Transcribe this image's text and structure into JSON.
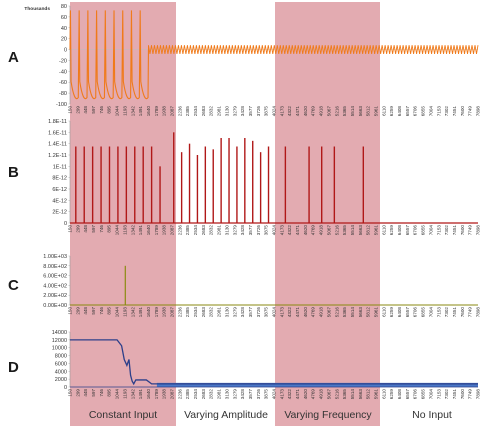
{
  "figure": {
    "panel_labels": [
      "A",
      "B",
      "C",
      "D"
    ],
    "regions": [
      "Constant Input",
      "Varying Amplitude",
      "Varying Frequency",
      "No Input"
    ],
    "colors": {
      "highlight": "#d98f97",
      "panel_a": "#f07a1a",
      "panel_b": "#b01818",
      "panel_c": "#8a8a10",
      "panel_d": "#2c3f8a",
      "panel_d_fill": "#4a78c8"
    },
    "x_tick_labels": [
      "150",
      "299",
      "448",
      "597",
      "746",
      "895",
      "1044",
      "1193",
      "1342",
      "1491",
      "1640",
      "1789",
      "1938",
      "2087",
      "2236",
      "2385",
      "2534",
      "2683",
      "2832",
      "2981",
      "3130",
      "3279",
      "3428",
      "3577",
      "3726",
      "3875",
      "4024",
      "4173",
      "4322",
      "4471",
      "4620",
      "4769",
      "4918",
      "5067",
      "5216",
      "5365",
      "5514",
      "5663",
      "5812",
      "5961",
      "6110",
      "6259",
      "6408",
      "6557",
      "6706",
      "6855",
      "7004",
      "7153",
      "7302",
      "7451",
      "7600",
      "7749",
      "7898"
    ]
  },
  "chart_data": [
    {
      "type": "line",
      "panel": "A",
      "title": "",
      "ylabel": "Thousands",
      "ylim": [
        -100,
        80
      ],
      "y_ticks": [
        "80",
        "60",
        "40",
        "20",
        "0",
        "-20",
        "-40",
        "-60",
        "-80",
        "-100"
      ],
      "series": [
        {
          "description_free": true,
          "segments": [
            {
              "x_range": [
                150,
                1640
              ],
              "spikes": 9,
              "spike_max": 72,
              "trough": -98
            },
            {
              "x_range": [
                1640,
                7898
              ],
              "oscillation": [
                -8,
                8
              ]
            }
          ]
        }
      ]
    },
    {
      "type": "bar",
      "panel": "B",
      "title": "",
      "ylim": [
        0,
        1.8e-11
      ],
      "y_ticks": [
        "1.8E-11",
        "1.6E-11",
        "1.4E-11",
        "1.2E-11",
        "1E-11",
        "8E-12",
        "6E-12",
        "4E-12",
        "2E-12",
        "0"
      ],
      "x": [
        260,
        420,
        580,
        740,
        900,
        1060,
        1220,
        1380,
        1540,
        1700,
        1860,
        2120,
        2270,
        2420,
        2570,
        2720,
        2870,
        3020,
        3170,
        3320,
        3470,
        3620,
        3770,
        3920,
        4240,
        4690,
        4930,
        5170,
        5720
      ],
      "values": [
        1.35e-11,
        1.35e-11,
        1.35e-11,
        1.35e-11,
        1.35e-11,
        1.35e-11,
        1.35e-11,
        1.35e-11,
        1.35e-11,
        1.35e-11,
        1e-11,
        1.6e-11,
        1.25e-11,
        1.4e-11,
        1.2e-11,
        1.35e-11,
        1.3e-11,
        1.5e-11,
        1.5e-11,
        1.35e-11,
        1.5e-11,
        1.45e-11,
        1.25e-11,
        1.35e-11,
        1.35e-11,
        1.35e-11,
        1.35e-11,
        1.35e-11,
        1.35e-11
      ]
    },
    {
      "type": "bar",
      "panel": "C",
      "title": "",
      "ylim": [
        0,
        1000.0
      ],
      "y_ticks": [
        "1.00E+03",
        "8.00E+02",
        "6.00E+02",
        "4.00E+02",
        "2.00E+02",
        "0.00E+00"
      ],
      "x": [
        1200
      ],
      "values": [
        800
      ]
    },
    {
      "type": "line",
      "panel": "D",
      "title": "",
      "ylim": [
        0,
        14000
      ],
      "y_ticks": [
        "14000",
        "12000",
        "10000",
        "8000",
        "6000",
        "4000",
        "2000",
        "0"
      ],
      "x": [
        150,
        1044,
        1130,
        1180,
        1230,
        1270,
        1300,
        1330,
        1360,
        1400,
        1440,
        1500,
        1600,
        1700,
        1800,
        2000,
        7898
      ],
      "y": [
        12000,
        12000,
        10500,
        7000,
        5500,
        7000,
        3000,
        1500,
        800,
        1800,
        1800,
        1800,
        1800,
        800,
        800,
        800,
        800
      ]
    }
  ]
}
